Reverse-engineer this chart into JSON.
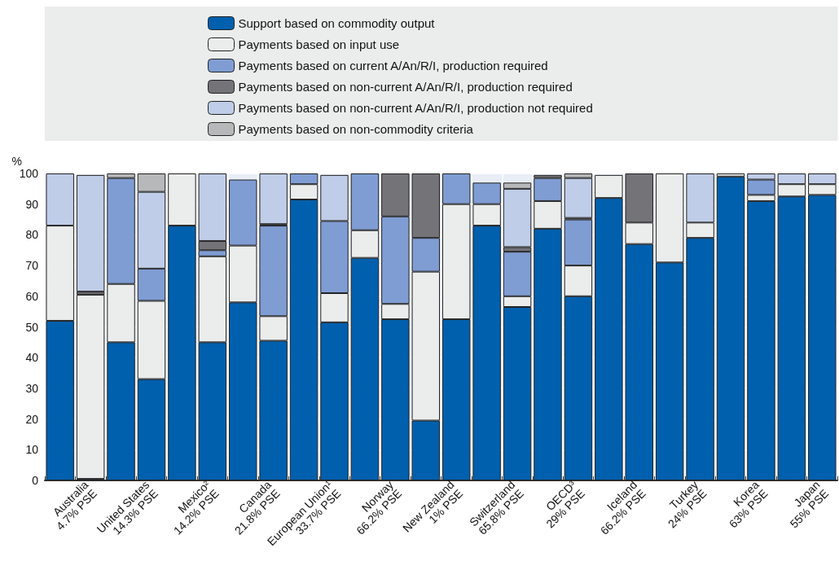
{
  "chart_data": {
    "type": "bar",
    "stacked": true,
    "ylabel": "%",
    "ylim": [
      0,
      100
    ],
    "yticks": [
      0,
      10,
      20,
      30,
      40,
      50,
      60,
      70,
      80,
      90,
      100
    ],
    "grid": true,
    "legend": "top",
    "categories": [
      null,
      "Australia\n4.7% PSE",
      null,
      "United States\n14.3% PSE",
      null,
      "Mexico²\n14.2% PSE",
      null,
      "Canada\n21.8% PSE",
      null,
      "European Union¹\n33.7% PSE",
      null,
      "Norway\n66.2% PSE",
      null,
      "New Zealand\n1% PSE",
      null,
      "Switzerland\n65.8% PSE",
      null,
      "OECD³\n29% PSE",
      null,
      "Iceland\n66.2% PSE",
      null,
      "Turkey\n24% PSE",
      null,
      "Korea\n63% PSE",
      null,
      "Japan\n55% PSE"
    ],
    "series": [
      {
        "name": "Support based on commodity output",
        "color": "#0060ae",
        "values": [
          52,
          0.5,
          45,
          33,
          83,
          45,
          58,
          45.5,
          91.5,
          51.5,
          72.5,
          52.5,
          19.5,
          52.5,
          83,
          56.5,
          82,
          60,
          92,
          77,
          71,
          79,
          99,
          91,
          92.5,
          93
        ]
      },
      {
        "name": "Payments based on input use",
        "color": "#ebedec",
        "values": [
          31,
          60,
          19,
          25.5,
          17,
          28,
          18.5,
          8,
          5,
          9.5,
          9,
          5,
          48.5,
          37.5,
          7,
          3.5,
          9,
          10,
          7.5,
          7,
          29,
          5,
          1,
          2,
          4,
          3.5
        ]
      },
      {
        "name": "Payments based on current A/An/R/I, production required",
        "color": "#7f9dd3",
        "values": [
          0,
          null,
          34.5,
          10.5,
          0,
          2,
          21.5,
          29.5,
          3.5,
          23.5,
          18.5,
          28.5,
          11,
          10,
          7,
          14.5,
          7.5,
          15,
          0,
          0,
          0,
          0,
          0,
          5,
          0,
          0
        ]
      },
      {
        "name": "Payments based on non-current A/An/R/I, production required",
        "color": "#737378",
        "values": [
          0,
          1,
          0,
          0,
          0,
          3,
          0,
          0.5,
          0,
          0,
          0,
          14,
          21,
          0,
          0,
          1.5,
          1,
          0.5,
          0,
          16,
          0,
          0,
          0,
          0,
          0,
          0
        ]
      },
      {
        "name": "Payments based on non-current A/An/R/I, production not required",
        "color": "#c0cde8",
        "values": [
          17,
          38,
          0,
          25,
          0,
          22,
          0,
          16.5,
          0,
          15,
          0,
          0,
          0,
          0,
          0,
          19,
          null,
          13,
          null,
          0,
          0,
          16,
          0,
          2,
          3.5,
          3.5
        ]
      },
      {
        "name": "Payments based on non-commodity criteria",
        "color": "#b7b8ba",
        "values": [
          0,
          0,
          1.5,
          6,
          0,
          0,
          0,
          0,
          0,
          null,
          0,
          0,
          0,
          0,
          0,
          2,
          0,
          1.5,
          0,
          0,
          0,
          0,
          0,
          0,
          0,
          0
        ]
      }
    ]
  }
}
